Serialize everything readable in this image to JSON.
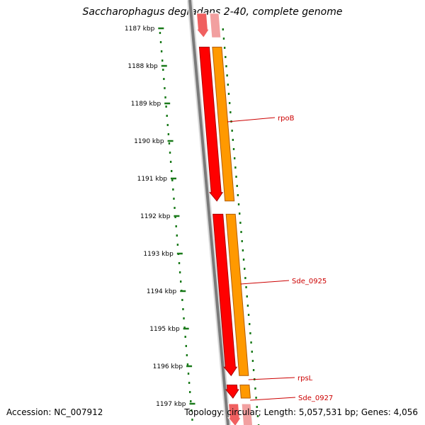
{
  "title": "Saccharophagus degradans 2-40, complete genome",
  "ruler": {
    "unit": "kbp",
    "ticks": [
      "1187 kbp",
      "1188 kbp",
      "1189 kbp",
      "1190 kbp",
      "1191 kbp",
      "1192 kbp",
      "1193 kbp",
      "1194 kbp",
      "1195 kbp",
      "1196 kbp",
      "1197 kbp"
    ]
  },
  "genes": [
    {
      "name": "",
      "strand": "+",
      "start_kbp": 1186.6,
      "end_kbp": 1187.25,
      "faded": true
    },
    {
      "name": "rpoB",
      "strand": "+",
      "start_kbp": 1187.5,
      "end_kbp": 1191.6,
      "faded": false
    },
    {
      "name": "Sde_0925",
      "strand": "+",
      "start_kbp": 1191.95,
      "end_kbp": 1196.25,
      "faded": false
    },
    {
      "name": "rpsL",
      "strand": "+",
      "start_kbp": 1196.5,
      "end_kbp": 1196.85,
      "faded": false
    },
    {
      "name": "Sde_0927",
      "strand": "+",
      "start_kbp": 1197.0,
      "end_kbp": 1197.6,
      "faded": true
    }
  ],
  "labels": [
    {
      "text": "rpoB",
      "gene": "rpoB"
    },
    {
      "text": "Sde_0925",
      "gene": "Sde_0925"
    },
    {
      "text": "rpsL",
      "gene": "rpsL"
    },
    {
      "text": "Sde_0927",
      "gene": "Sde_0927"
    }
  ],
  "colors": {
    "cds": "#ff0000",
    "cds_edge": "#aa0000",
    "gene": "#ff9900",
    "gene_edge": "#b35c00",
    "faded_cds": "#f06060",
    "faded_gene": "#f2a0a0",
    "ruler": "#1a7a1a",
    "backbone": "#7a7a7a",
    "label": "#cc0000"
  },
  "footer": {
    "accession": "Accession: NC_007912",
    "summary": "Topology: circular; Length: 5,057,531 bp; Genes: 4,056"
  }
}
